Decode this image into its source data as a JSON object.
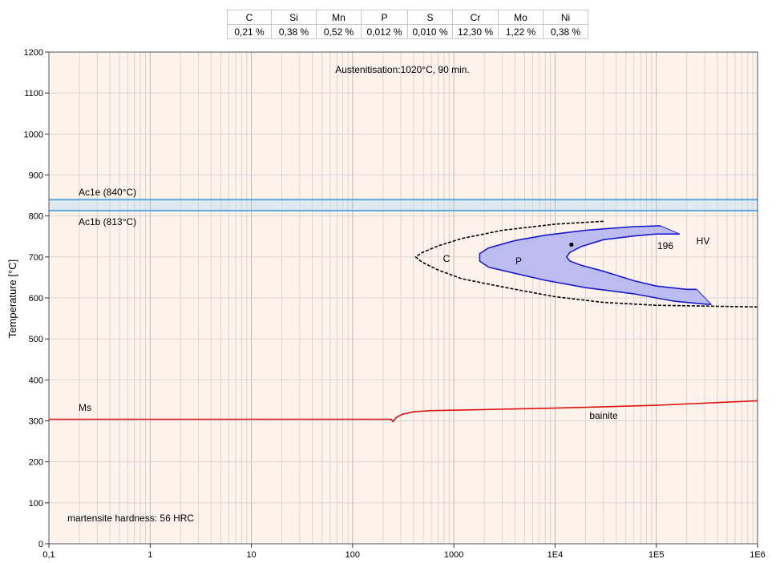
{
  "composition": {
    "elements": [
      "C",
      "Si",
      "Mn",
      "P",
      "S",
      "Cr",
      "Mo",
      "Ni"
    ],
    "values": [
      "0,21 %",
      "0,38 %",
      "0,52 %",
      "0,012 %",
      "0,010 %",
      "12,30 %",
      "1,22 %",
      "0,38 %"
    ]
  },
  "chart_data": {
    "type": "line",
    "title": "",
    "xlabel": "",
    "ylabel": "Temperature [°C]",
    "x_scale": "log",
    "xlim": [
      0.1,
      1000000
    ],
    "ylim": [
      0,
      1200
    ],
    "grid": true,
    "x_ticks": [
      {
        "value": 0.1,
        "label": "0,1"
      },
      {
        "value": 1,
        "label": "1"
      },
      {
        "value": 10,
        "label": "10"
      },
      {
        "value": 100,
        "label": "100"
      },
      {
        "value": 1000,
        "label": "1000"
      },
      {
        "value": 10000,
        "label": "1E4"
      },
      {
        "value": 100000,
        "label": "1E5"
      },
      {
        "value": 1000000,
        "label": "1E6"
      }
    ],
    "y_ticks": [
      0,
      100,
      200,
      300,
      400,
      500,
      600,
      700,
      800,
      900,
      1000,
      1100,
      1200
    ],
    "colors": {
      "background": "#fdf3ec",
      "grid": "#d8d4cf",
      "ac_lines": "#5aa8dc",
      "ac_band": "#dfe9f2",
      "pearlite": "#1a1acd",
      "pearlite_fill": "#bcbcf0",
      "ms": "#dd1111",
      "c_curve": "#000000"
    },
    "ac_lines": [
      {
        "label": "Ac1e (840°C)",
        "temperature": 840
      },
      {
        "label": "Ac1b (813°C)",
        "temperature": 813
      }
    ],
    "ms_line": {
      "label": "Ms",
      "points": [
        [
          0.1,
          304
        ],
        [
          240,
          304
        ],
        [
          250,
          298
        ],
        [
          270,
          308
        ],
        [
          310,
          316
        ],
        [
          400,
          322
        ],
        [
          600,
          325
        ],
        [
          1000,
          326
        ],
        [
          10000,
          331
        ],
        [
          100000,
          338
        ],
        [
          1000000,
          349
        ]
      ]
    },
    "c_curve": {
      "label": "C",
      "points": [
        [
          30000,
          787
        ],
        [
          10000,
          780
        ],
        [
          3000,
          765
        ],
        [
          1200,
          745
        ],
        [
          700,
          727
        ],
        [
          480,
          710
        ],
        [
          420,
          700
        ],
        [
          480,
          688
        ],
        [
          700,
          668
        ],
        [
          1200,
          647
        ],
        [
          3000,
          627
        ],
        [
          10000,
          603
        ],
        [
          30000,
          589
        ],
        [
          100000,
          582
        ],
        [
          1000000,
          578
        ]
      ]
    },
    "pearlite_start": {
      "label": "P",
      "points": [
        [
          110000,
          776
        ],
        [
          60000,
          774
        ],
        [
          20000,
          765
        ],
        [
          8000,
          753
        ],
        [
          4000,
          740
        ],
        [
          2200,
          722
        ],
        [
          1800,
          708
        ],
        [
          1800,
          690
        ],
        [
          2200,
          675
        ],
        [
          4000,
          660
        ],
        [
          8000,
          643
        ],
        [
          20000,
          625
        ],
        [
          60000,
          610
        ],
        [
          150000,
          592
        ],
        [
          300000,
          585
        ],
        [
          350000,
          584
        ]
      ]
    },
    "pearlite_finish": {
      "points": [
        [
          170000,
          756
        ],
        [
          100000,
          756
        ],
        [
          60000,
          751
        ],
        [
          30000,
          742
        ],
        [
          18000,
          725
        ],
        [
          14000,
          711
        ],
        [
          13000,
          700
        ],
        [
          14000,
          690
        ],
        [
          18000,
          680
        ],
        [
          30000,
          665
        ],
        [
          60000,
          642
        ],
        [
          100000,
          629
        ],
        [
          200000,
          621
        ],
        [
          250000,
          621
        ]
      ]
    },
    "hardness_marker": {
      "x": 14500,
      "y": 730,
      "label": "196",
      "unit": "HV"
    },
    "annotations": {
      "austenitisation": "Austenitisation:1020°C, 90 min.",
      "bainite": "bainite",
      "martensite_hardness": "martensite hardness: 56 HRC"
    }
  }
}
